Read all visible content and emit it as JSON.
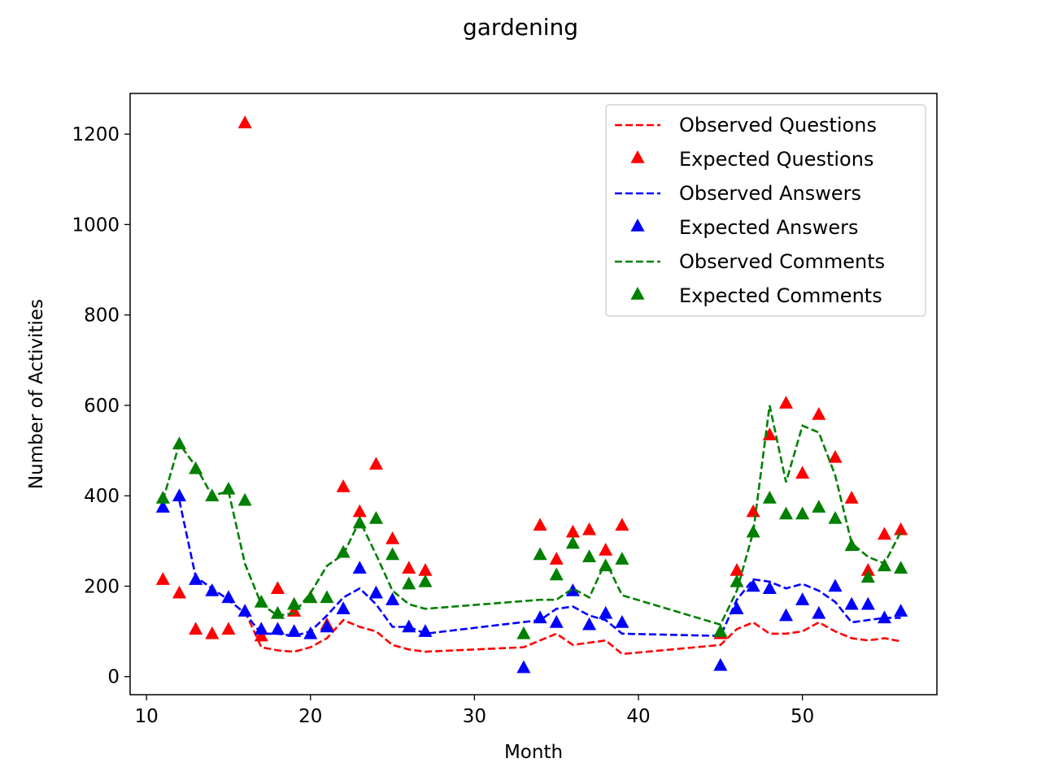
{
  "chart_data": {
    "type": "line",
    "title": "gardening",
    "xlabel": "Month",
    "ylabel": "Number of Activities",
    "xlim": [
      9,
      58.2
    ],
    "ylim": [
      -40,
      1290
    ],
    "xticks": [
      "10",
      "20",
      "30",
      "40",
      "50"
    ],
    "yticks": [
      "0",
      "200",
      "400",
      "600",
      "800",
      "1000",
      "1200"
    ],
    "grid": false,
    "legend_position": "top-right",
    "series": [
      {
        "name": "Observed Questions",
        "style": "dashed-line",
        "color": "#ff0000",
        "x": [
          16,
          17,
          18,
          19,
          20,
          21,
          22,
          23,
          24,
          25,
          26,
          27,
          33,
          34,
          35,
          36,
          37,
          38,
          39,
          45,
          46,
          47,
          48,
          49,
          50,
          51,
          52,
          53,
          54,
          55,
          56
        ],
        "y": [
          145,
          65,
          58,
          55,
          65,
          85,
          125,
          110,
          100,
          70,
          60,
          55,
          65,
          80,
          95,
          70,
          75,
          80,
          50,
          70,
          105,
          120,
          95,
          95,
          100,
          120,
          100,
          85,
          80,
          85,
          78
        ]
      },
      {
        "name": "Expected Questions",
        "style": "triangle-marker",
        "color": "#ff0000",
        "x": [
          11,
          12,
          13,
          14,
          15,
          16,
          17,
          18,
          19,
          20,
          21,
          22,
          23,
          24,
          25,
          26,
          27,
          34,
          35,
          36,
          37,
          38,
          39,
          45,
          46,
          47,
          48,
          49,
          50,
          51,
          52,
          53,
          54,
          55,
          56
        ],
        "y": [
          215,
          185,
          105,
          95,
          105,
          1225,
          90,
          195,
          145,
          175,
          115,
          420,
          365,
          470,
          305,
          240,
          235,
          335,
          260,
          320,
          325,
          280,
          335,
          95,
          235,
          365,
          535,
          605,
          450,
          580,
          485,
          395,
          235,
          315,
          325
        ]
      },
      {
        "name": "Observed Answers",
        "style": "dashed-line",
        "color": "#0000ff",
        "x": [
          12,
          13,
          14,
          15,
          16,
          17,
          18,
          19,
          20,
          21,
          22,
          23,
          24,
          25,
          26,
          27,
          34,
          35,
          36,
          37,
          38,
          39,
          45,
          46,
          47,
          48,
          49,
          50,
          51,
          52,
          53,
          54,
          55,
          56
        ],
        "y": [
          390,
          220,
          195,
          170,
          140,
          95,
          95,
          90,
          100,
          135,
          175,
          195,
          160,
          110,
          110,
          95,
          125,
          150,
          155,
          135,
          125,
          95,
          90,
          170,
          215,
          210,
          195,
          205,
          190,
          165,
          120,
          125,
          130,
          130
        ]
      },
      {
        "name": "Expected Answers",
        "style": "triangle-marker",
        "color": "#0000ff",
        "x": [
          11,
          12,
          13,
          14,
          15,
          16,
          17,
          18,
          19,
          20,
          21,
          22,
          23,
          24,
          25,
          26,
          27,
          33,
          34,
          35,
          36,
          37,
          38,
          39,
          45,
          46,
          47,
          48,
          49,
          50,
          51,
          52,
          53,
          54,
          55,
          56
        ],
        "y": [
          375,
          400,
          215,
          190,
          175,
          145,
          105,
          105,
          100,
          95,
          110,
          150,
          240,
          185,
          170,
          110,
          100,
          20,
          130,
          120,
          190,
          115,
          140,
          120,
          25,
          150,
          200,
          195,
          135,
          170,
          140,
          200,
          160,
          160,
          130,
          145
        ]
      },
      {
        "name": "Observed Comments",
        "style": "dashed-line",
        "color": "#008000",
        "x": [
          11,
          12,
          13,
          14,
          15,
          16,
          17,
          18,
          19,
          20,
          21,
          22,
          23,
          24,
          25,
          26,
          27,
          34,
          35,
          36,
          37,
          38,
          39,
          45,
          46,
          47,
          48,
          49,
          50,
          51,
          52,
          53,
          54,
          55,
          56
        ],
        "y": [
          390,
          515,
          465,
          400,
          410,
          250,
          160,
          135,
          140,
          185,
          245,
          270,
          345,
          270,
          190,
          160,
          150,
          170,
          170,
          195,
          175,
          255,
          180,
          115,
          190,
          320,
          600,
          430,
          555,
          540,
          445,
          295,
          265,
          250,
          320
        ]
      },
      {
        "name": "Expected Comments",
        "style": "triangle-marker",
        "color": "#008000",
        "x": [
          11,
          12,
          13,
          14,
          15,
          16,
          17,
          18,
          19,
          20,
          21,
          22,
          23,
          24,
          25,
          26,
          27,
          33,
          34,
          35,
          36,
          37,
          38,
          39,
          45,
          46,
          47,
          48,
          49,
          50,
          51,
          52,
          53,
          54,
          55,
          56
        ],
        "y": [
          395,
          515,
          460,
          400,
          415,
          390,
          165,
          140,
          160,
          175,
          175,
          275,
          340,
          350,
          270,
          205,
          210,
          95,
          270,
          225,
          295,
          265,
          245,
          260,
          100,
          210,
          320,
          395,
          360,
          360,
          375,
          350,
          290,
          220,
          245,
          240
        ]
      }
    ]
  }
}
